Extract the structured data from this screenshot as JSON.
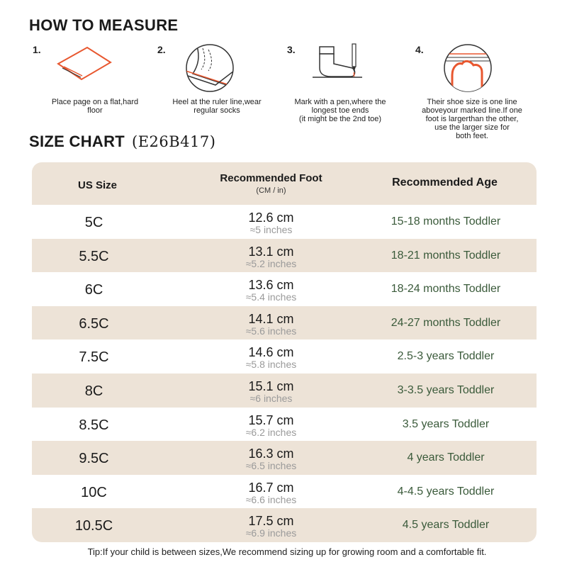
{
  "how_to": {
    "title": "HOW TO MEASURE",
    "steps": [
      {
        "num": "1.",
        "text": "Place page on a flat,hard\nfloor",
        "icon": "paper-icon"
      },
      {
        "num": "2.",
        "text": "Heel at the ruler line,wear\nregular socks",
        "icon": "heel-ruler-icon"
      },
      {
        "num": "3.",
        "text": "Mark with a pen,where the\nlongest toe ends\n(it might be the 2nd toe)",
        "icon": "sock-pen-icon"
      },
      {
        "num": "4.",
        "text": "Their shoe size is one line\naboveyour marked line.If one\nfoot is largerthan the other,\nuse the larger size for\nboth feet.",
        "icon": "toe-line-icon"
      }
    ]
  },
  "size_chart": {
    "title": "SIZE CHART",
    "code": "(E26B417)",
    "headers": {
      "us_size": "US Size",
      "foot": "Recommended Foot",
      "foot_sub": "(CM / in)",
      "age": "Recommended Age"
    },
    "rows": [
      {
        "size": "5C",
        "cm": "12.6 cm",
        "inch": "≈5 inches",
        "age": "15-18 months Toddler"
      },
      {
        "size": "5.5C",
        "cm": "13.1 cm",
        "inch": "≈5.2 inches",
        "age": "18-21 months Toddler"
      },
      {
        "size": "6C",
        "cm": "13.6 cm",
        "inch": "≈5.4 inches",
        "age": "18-24 months Toddler"
      },
      {
        "size": "6.5C",
        "cm": "14.1 cm",
        "inch": "≈5.6 inches",
        "age": "24-27 months Toddler"
      },
      {
        "size": "7.5C",
        "cm": "14.6 cm",
        "inch": "≈5.8 inches",
        "age": "2.5-3 years Toddler"
      },
      {
        "size": "8C",
        "cm": "15.1 cm",
        "inch": "≈6 inches",
        "age": "3-3.5 years Toddler"
      },
      {
        "size": "8.5C",
        "cm": "15.7 cm",
        "inch": "≈6.2 inches",
        "age": "3.5 years Toddler"
      },
      {
        "size": "9.5C",
        "cm": "16.3 cm",
        "inch": "≈6.5 inches",
        "age": "4 years Toddler"
      },
      {
        "size": "10C",
        "cm": "16.7 cm",
        "inch": "≈6.6 inches",
        "age": "4-4.5 years Toddler"
      },
      {
        "size": "10.5C",
        "cm": "17.5 cm",
        "inch": "≈6.9 inches",
        "age": "4.5 years Toddler"
      }
    ]
  },
  "tip": "Tip:If your child is between sizes,We recommend sizing up for growing room and a comfortable fit.",
  "colors": {
    "band": "#ede3d7",
    "accent": "#e8572f",
    "age_text": "#3a5a3a"
  }
}
